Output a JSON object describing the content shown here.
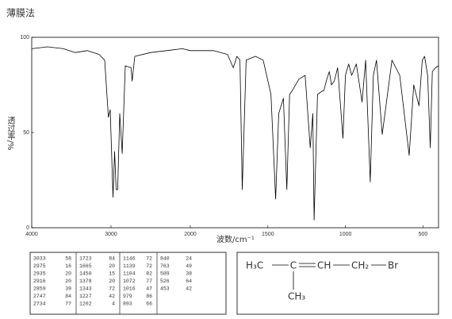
{
  "chart_data": {
    "type": "line",
    "title": "薄膜法",
    "ylabel": "透过率/%",
    "xlabel": "波数/cm⁻¹",
    "xlim": [
      4000,
      400
    ],
    "xbreak": 2000,
    "xticks": [
      4000,
      3000,
      2000,
      1500,
      1000,
      500
    ],
    "ylim": [
      0,
      100
    ],
    "yticks": [
      0,
      50,
      100
    ],
    "color": "#000000",
    "x": [
      4000,
      3800,
      3600,
      3450,
      3300,
      3150,
      3080,
      3033,
      3010,
      2975,
      2955,
      2935,
      2916,
      2890,
      2859,
      2820,
      2747,
      2734,
      2700,
      2500,
      2300,
      2100,
      2000,
      1850,
      1760,
      1723,
      1700,
      1680,
      1665,
      1640,
      1580,
      1530,
      1480,
      1450,
      1430,
      1400,
      1378,
      1360,
      1343,
      1300,
      1260,
      1227,
      1210,
      1202,
      1180,
      1146,
      1139,
      1120,
      1104,
      1090,
      1072,
      1050,
      1016,
      1000,
      979,
      960,
      930,
      893,
      870,
      840,
      820,
      800,
      763,
      700,
      650,
      589,
      560,
      526,
      505,
      490,
      470,
      453,
      440,
      420,
      400
    ],
    "values": [
      94,
      95,
      94,
      92,
      93,
      91,
      88,
      58,
      62,
      16,
      40,
      20,
      20,
      60,
      39,
      85,
      84,
      77,
      90,
      92,
      93,
      94,
      93,
      93,
      91,
      84,
      90,
      88,
      20,
      88,
      90,
      88,
      70,
      15,
      60,
      68,
      20,
      70,
      72,
      78,
      80,
      42,
      60,
      4,
      70,
      72,
      72,
      78,
      82,
      75,
      77,
      84,
      47,
      80,
      86,
      80,
      86,
      66,
      88,
      24,
      80,
      88,
      49,
      88,
      80,
      38,
      75,
      64,
      88,
      90,
      80,
      42,
      82,
      84,
      85
    ]
  },
  "peak_table": [
    [
      [
        "3033",
        "58"
      ],
      [
        "2975",
        "16"
      ],
      [
        "2935",
        "20"
      ],
      [
        "2916",
        "20"
      ],
      [
        "2859",
        "39"
      ],
      [
        "2747",
        "84"
      ],
      [
        "2734",
        "77"
      ]
    ],
    [
      [
        "1723",
        "84"
      ],
      [
        "1665",
        "20"
      ],
      [
        "1450",
        "15"
      ],
      [
        "1378",
        "20"
      ],
      [
        "1343",
        "72"
      ],
      [
        "1227",
        "42"
      ],
      [
        "1202",
        "4"
      ]
    ],
    [
      [
        "1146",
        "72"
      ],
      [
        "1139",
        "72"
      ],
      [
        "1104",
        "82"
      ],
      [
        "1072",
        "77"
      ],
      [
        "1016",
        "47"
      ],
      [
        "979",
        "86"
      ],
      [
        "893",
        "66"
      ]
    ],
    [
      [
        "840",
        "24"
      ],
      [
        "763",
        "49"
      ],
      [
        "589",
        "38"
      ],
      [
        "526",
        "64"
      ],
      [
        "453",
        "42"
      ]
    ]
  ],
  "structure": {
    "atoms": [
      "H₃C",
      "C",
      "CH",
      "CH₂",
      "Br",
      "CH₃"
    ]
  }
}
